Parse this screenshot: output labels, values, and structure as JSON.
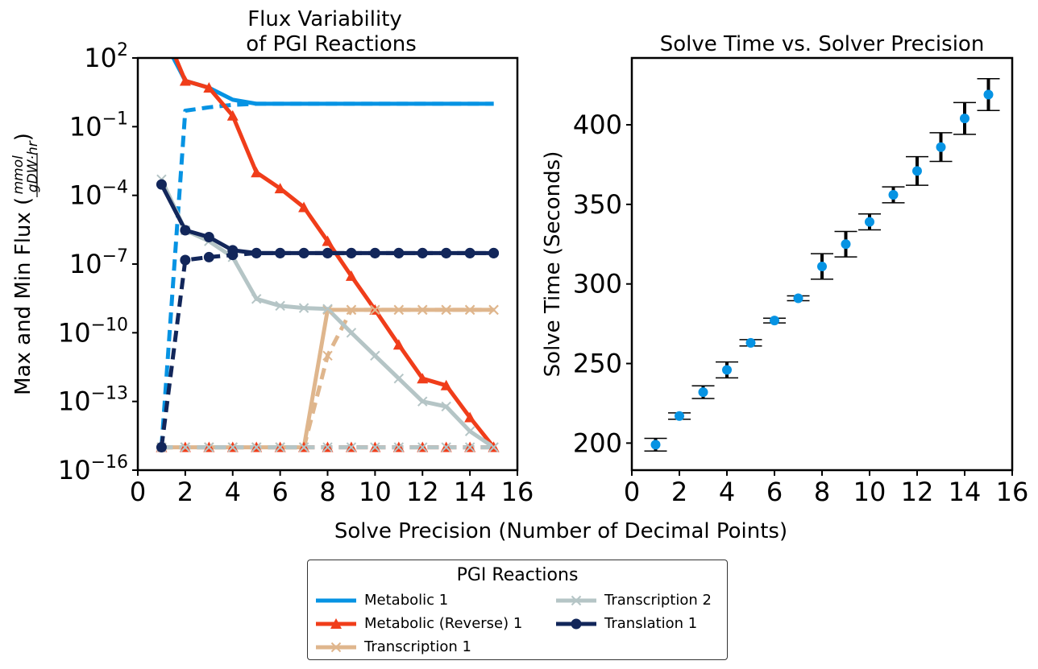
{
  "chart_data": [
    {
      "type": "line",
      "title": "Flux Variability\nof PGI Reactions",
      "ylabel": "Max and Min Flux (",
      "ylabel_fraction": {
        "numerator": "mmol",
        "denominator": "gDW·hr"
      },
      "ylabel_close": ")",
      "yscale": "log",
      "ylim": [
        1e-16,
        100
      ],
      "xlim": [
        0,
        16
      ],
      "xticks": [
        "0",
        "2",
        "4",
        "6",
        "8",
        "10",
        "12",
        "14",
        "16"
      ],
      "ytick_exponents": [
        "2",
        "−1",
        "−4",
        "−7",
        "−10",
        "−13",
        "−16"
      ],
      "ytick_values": [
        100,
        0.1,
        0.0001,
        1e-07,
        1e-10,
        1e-13,
        1e-16
      ],
      "x": [
        1,
        2,
        3,
        4,
        5,
        6,
        7,
        8,
        9,
        10,
        11,
        12,
        13,
        14,
        15
      ],
      "series": [
        {
          "name": "Metabolic 1",
          "color": "#0693e3",
          "marker": "none",
          "max": [
            1000,
            10,
            5,
            1.5,
            1.0,
            1.0,
            1.0,
            1.0,
            1.0,
            1.0,
            1.0,
            1.0,
            1.0,
            1.0,
            1.0
          ],
          "min": [
            1e-15,
            0.5,
            0.7,
            0.9,
            1.0,
            1.0,
            1.0,
            1.0,
            1.0,
            1.0,
            1.0,
            1.0,
            1.0,
            1.0,
            1.0
          ]
        },
        {
          "name": "Metabolic (Reverse) 1",
          "color": "#f03d1a",
          "marker": "triangle",
          "max": [
            3000,
            10,
            5,
            0.3,
            0.001,
            0.0002,
            3e-05,
            1e-06,
            3e-08,
            1e-09,
            3e-11,
            1e-12,
            5e-13,
            2e-14,
            1e-15
          ],
          "min": [
            1e-15,
            1e-15,
            1e-15,
            1e-15,
            1e-15,
            1e-15,
            1e-15,
            1e-15,
            1e-15,
            1e-15,
            1e-15,
            1e-15,
            1e-15,
            1e-15,
            1e-15
          ]
        },
        {
          "name": "Transcription 1",
          "color": "#dfb68d",
          "marker": "x",
          "max": [
            1e-15,
            1e-15,
            1e-15,
            1e-15,
            1e-15,
            1e-15,
            1e-15,
            1e-09,
            1e-09,
            1e-09,
            1e-09,
            1e-09,
            1e-09,
            1e-09,
            1e-09
          ],
          "min": [
            1e-15,
            1e-15,
            1e-15,
            1e-15,
            1e-15,
            1e-15,
            1e-15,
            1e-11,
            1e-09,
            1e-09,
            1e-09,
            1e-09,
            1e-09,
            1e-09,
            1e-09
          ]
        },
        {
          "name": "Transcription 2",
          "color": "#b5c5c6",
          "marker": "x",
          "max": [
            0.0005,
            3e-06,
            1e-06,
            2e-07,
            3e-09,
            1.5e-09,
            1.2e-09,
            1.1e-09,
            1e-10,
            1e-11,
            1e-12,
            1e-13,
            6e-14,
            5e-15,
            1e-15
          ],
          "min": [
            1e-15,
            1e-15,
            1e-15,
            1e-15,
            1e-15,
            1e-15,
            1e-15,
            1e-15,
            1e-15,
            1e-15,
            1e-15,
            1e-15,
            1e-15,
            1e-15,
            1e-15
          ]
        },
        {
          "name": "Translation 1",
          "color": "#12265a",
          "marker": "circle",
          "max": [
            0.0003,
            3e-06,
            1.5e-06,
            4e-07,
            3e-07,
            3e-07,
            3e-07,
            3e-07,
            3e-07,
            3e-07,
            3e-07,
            3e-07,
            3e-07,
            3e-07,
            3e-07
          ],
          "min": [
            1e-15,
            1.5e-07,
            2e-07,
            2.5e-07,
            3e-07,
            3e-07,
            3e-07,
            3e-07,
            3e-07,
            3e-07,
            3e-07,
            3e-07,
            3e-07,
            3e-07,
            3e-07
          ]
        }
      ]
    },
    {
      "type": "scatter",
      "title": "Solve Time vs. Solver Precision",
      "ylabel": "Solve Time (Seconds)",
      "xlim": [
        0,
        16
      ],
      "ylim": [
        183,
        442
      ],
      "xticks": [
        "0",
        "2",
        "4",
        "6",
        "8",
        "10",
        "12",
        "14",
        "16"
      ],
      "yticks": [
        200,
        250,
        300,
        350,
        400
      ],
      "x": [
        1,
        2,
        3,
        4,
        5,
        6,
        7,
        8,
        9,
        10,
        11,
        12,
        13,
        14,
        15
      ],
      "y": [
        199,
        217,
        232,
        246,
        263,
        277,
        291,
        311,
        325,
        339,
        356,
        371,
        386,
        404,
        419
      ],
      "err": [
        4,
        2,
        4,
        5,
        2,
        1.5,
        1.5,
        8,
        8,
        5,
        5,
        9,
        9,
        10,
        10
      ],
      "color": "#0693e3"
    }
  ],
  "shared_xlabel": "Solve Precision (Number of Decimal Points)",
  "legend": {
    "title": "PGI Reactions",
    "items": [
      {
        "label": "Metabolic 1",
        "color": "#0693e3",
        "marker": "none"
      },
      {
        "label": "Metabolic (Reverse) 1",
        "color": "#f03d1a",
        "marker": "triangle"
      },
      {
        "label": "Transcription 1",
        "color": "#dfb68d",
        "marker": "x"
      },
      {
        "label": "Transcription 2",
        "color": "#b5c5c6",
        "marker": "x"
      },
      {
        "label": "Translation 1",
        "color": "#12265a",
        "marker": "circle"
      }
    ]
  }
}
